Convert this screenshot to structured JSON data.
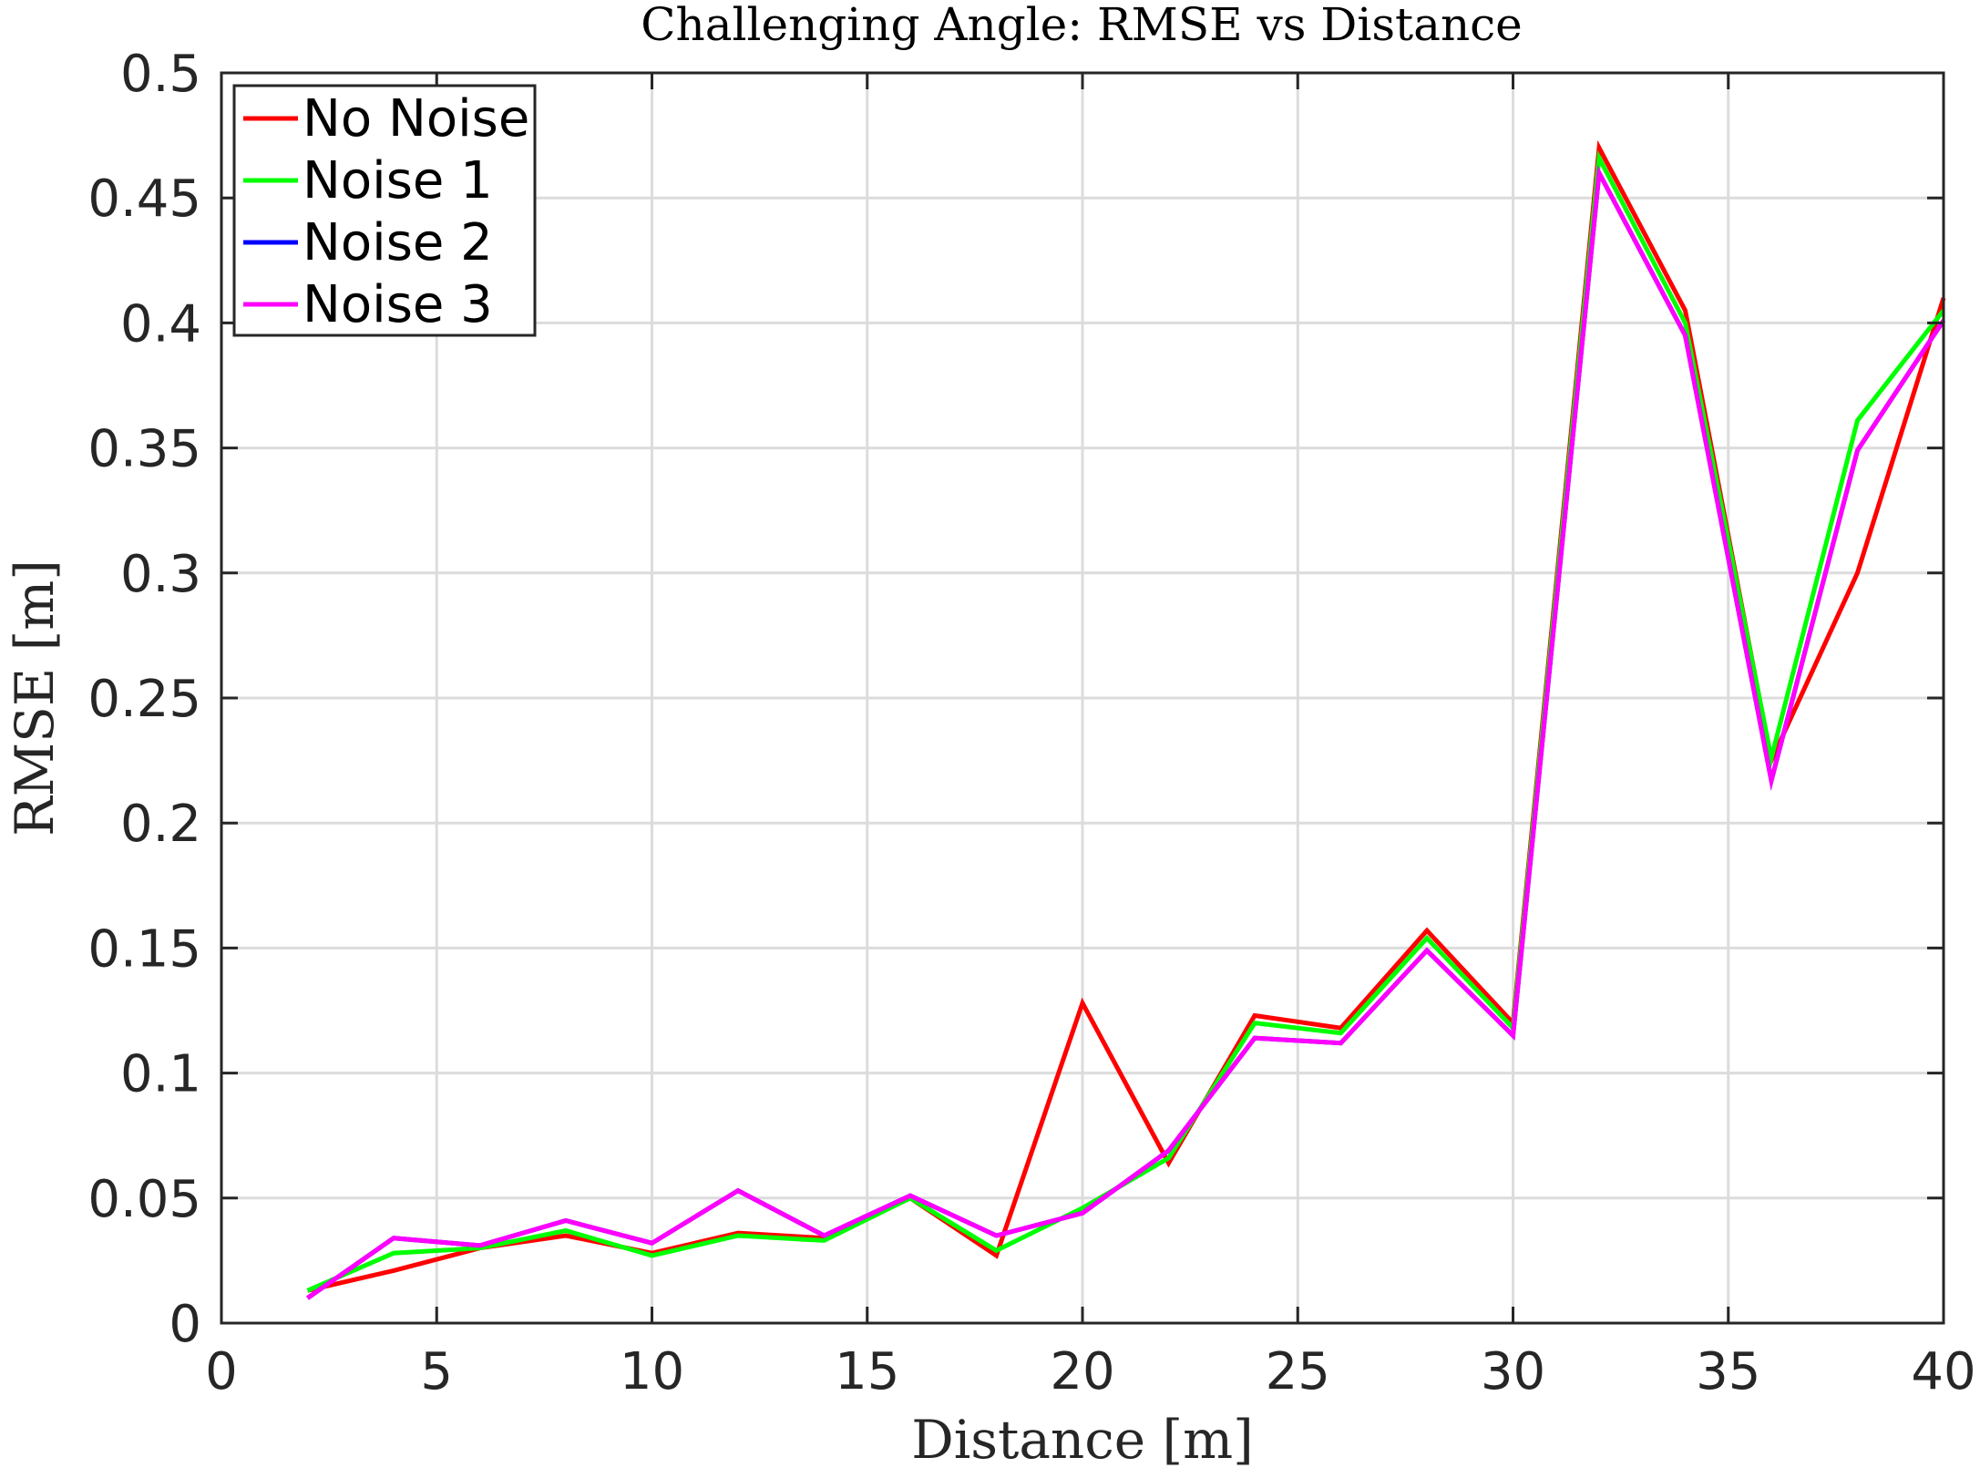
{
  "chart_data": {
    "type": "line",
    "title": "Challenging Angle: RMSE vs Distance",
    "xlabel": "Distance [m]",
    "ylabel": "RMSE [m]",
    "xlim": [
      0,
      40
    ],
    "ylim": [
      0,
      0.5
    ],
    "xticks": [
      0,
      5,
      10,
      15,
      20,
      25,
      30,
      35,
      40
    ],
    "yticks": [
      0,
      0.05,
      0.1,
      0.15,
      0.2,
      0.25,
      0.3,
      0.35,
      0.4,
      0.45,
      0.5
    ],
    "xtick_labels": [
      "0",
      "5",
      "10",
      "15",
      "20",
      "25",
      "30",
      "35",
      "40"
    ],
    "ytick_labels": [
      "0",
      "0.05",
      "0.1",
      "0.15",
      "0.2",
      "0.25",
      "0.3",
      "0.35",
      "0.4",
      "0.45",
      "0.5"
    ],
    "grid": true,
    "legend_position": "top-left",
    "x": [
      2,
      4,
      6,
      8,
      10,
      12,
      14,
      16,
      18,
      20,
      22,
      24,
      26,
      28,
      30,
      32,
      34,
      36,
      38,
      40
    ],
    "series": [
      {
        "name": "No Noise",
        "color": "#ff0000",
        "values": [
          0.013,
          0.021,
          0.03,
          0.035,
          0.028,
          0.036,
          0.034,
          0.05,
          0.027,
          0.128,
          0.064,
          0.123,
          0.118,
          0.157,
          0.12,
          0.47,
          0.405,
          0.225,
          0.3,
          0.41
        ]
      },
      {
        "name": "Noise 1",
        "color": "#00ff00",
        "values": [
          0.013,
          0.028,
          0.03,
          0.037,
          0.027,
          0.035,
          0.033,
          0.05,
          0.029,
          0.046,
          0.066,
          0.12,
          0.116,
          0.154,
          0.118,
          0.466,
          0.4,
          0.226,
          0.361,
          0.405
        ]
      },
      {
        "name": "Noise 2",
        "color": "#0000ff",
        "values": [
          0.01,
          0.034,
          0.031,
          0.041,
          0.032,
          0.053,
          0.035,
          0.051,
          0.035,
          0.044,
          0.069,
          0.114,
          0.112,
          0.149,
          0.115,
          0.46,
          0.395,
          0.217,
          0.349,
          0.401
        ]
      },
      {
        "name": "Noise 3",
        "color": "#ff00ff",
        "values": [
          0.01,
          0.034,
          0.031,
          0.041,
          0.032,
          0.053,
          0.035,
          0.051,
          0.035,
          0.044,
          0.069,
          0.114,
          0.112,
          0.149,
          0.115,
          0.46,
          0.395,
          0.217,
          0.349,
          0.401
        ]
      }
    ]
  }
}
